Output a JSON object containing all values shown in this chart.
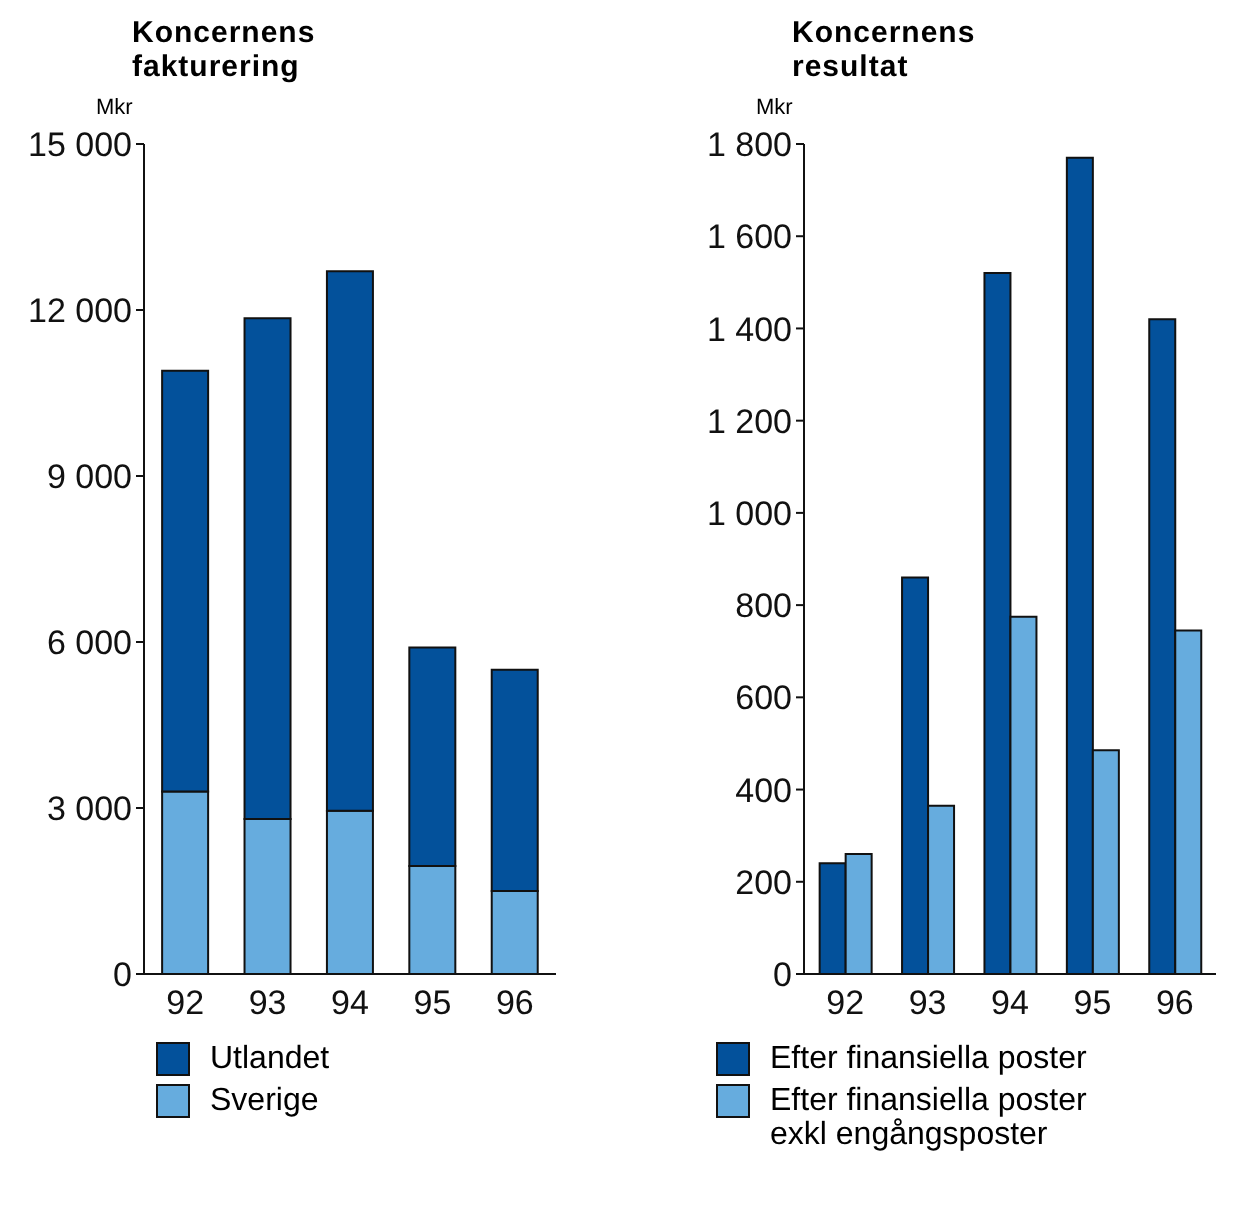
{
  "chart_data": [
    {
      "type": "bar",
      "title": "Koncernens fakturering",
      "ylabel": "Mkr",
      "categories": [
        "92",
        "93",
        "94",
        "95",
        "96"
      ],
      "stacked": true,
      "series": [
        {
          "name": "Sverige",
          "color": "#66acde",
          "values": [
            3300,
            2800,
            2950,
            1950,
            1500
          ]
        },
        {
          "name": "Utlandet",
          "color": "#03519b",
          "values": [
            7600,
            9050,
            9750,
            3950,
            4000
          ]
        }
      ],
      "ylim": [
        0,
        15000
      ],
      "yticks": [
        0,
        {
          "value": 3000,
          "label": "3 000"
        },
        {
          "value": 6000,
          "label": "6 000"
        },
        {
          "value": 9000,
          "label": "9 000"
        },
        {
          "value": 12000,
          "label": "12 000"
        },
        {
          "value": 15000,
          "label": "15 000"
        }
      ],
      "legend": "bottom"
    },
    {
      "type": "bar",
      "title": "Koncernens resultat",
      "ylabel": "Mkr",
      "categories": [
        "92",
        "93",
        "94",
        "95",
        "96"
      ],
      "series": [
        {
          "name": "Efter finansiella poster",
          "color": "#03519b",
          "values": [
            240,
            860,
            1520,
            1770,
            1420
          ]
        },
        {
          "name": "Efter finansiella poster exkl engångsposter",
          "color": "#66acde",
          "values": [
            260,
            365,
            775,
            485,
            745
          ]
        }
      ],
      "ylim": [
        0,
        1800
      ],
      "yticks": [
        0,
        200,
        400,
        600,
        800,
        {
          "value": 1000,
          "label": "1 000"
        },
        {
          "value": 1200,
          "label": "1 200"
        },
        {
          "value": 1400,
          "label": "1 400"
        },
        {
          "value": 1600,
          "label": "1 600"
        },
        {
          "value": 1800,
          "label": "1 800"
        }
      ],
      "legend": "bottom"
    }
  ]
}
